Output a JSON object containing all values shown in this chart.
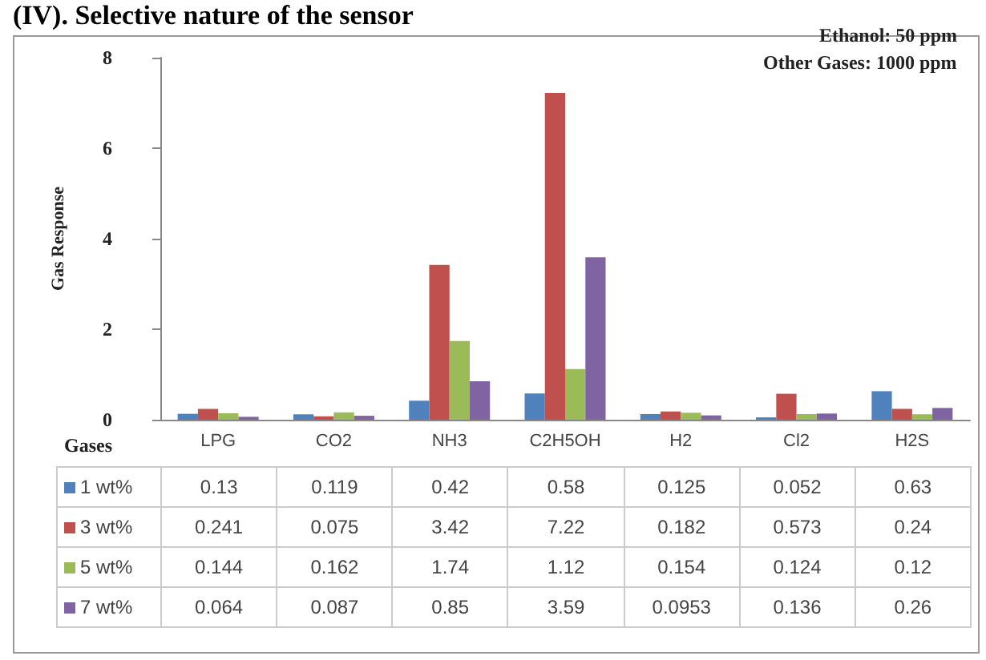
{
  "chart_data": {
    "type": "bar",
    "title": "(IV). Selective nature of the sensor",
    "ylabel": "Gas Response",
    "xlabel": "Gases",
    "annotations": [
      "Ethanol: 50 ppm",
      "Other Gases: 1000 ppm"
    ],
    "categories": [
      "LPG",
      "CO2",
      "NH3",
      "C2H5OH",
      "H2",
      "Cl2",
      "H2S"
    ],
    "series": [
      {
        "name": "1 wt%",
        "color": "#4f81bd",
        "values": [
          0.13,
          0.119,
          0.42,
          0.58,
          0.125,
          0.052,
          0.63
        ]
      },
      {
        "name": "3 wt%",
        "color": "#c0504d",
        "values": [
          0.241,
          0.075,
          3.42,
          7.22,
          0.182,
          0.573,
          0.24
        ]
      },
      {
        "name": "5 wt%",
        "color": "#9bbb59",
        "values": [
          0.144,
          0.162,
          1.74,
          1.12,
          0.154,
          0.124,
          0.12
        ]
      },
      {
        "name": "7 wt%",
        "color": "#8064a2",
        "values": [
          0.064,
          0.087,
          0.85,
          3.59,
          0.0953,
          0.136,
          0.26
        ]
      }
    ],
    "ylim": [
      0,
      8
    ],
    "yticks": [
      0,
      2,
      4,
      6,
      8
    ],
    "data_labels": true,
    "legend": "bottom",
    "grid": false
  }
}
